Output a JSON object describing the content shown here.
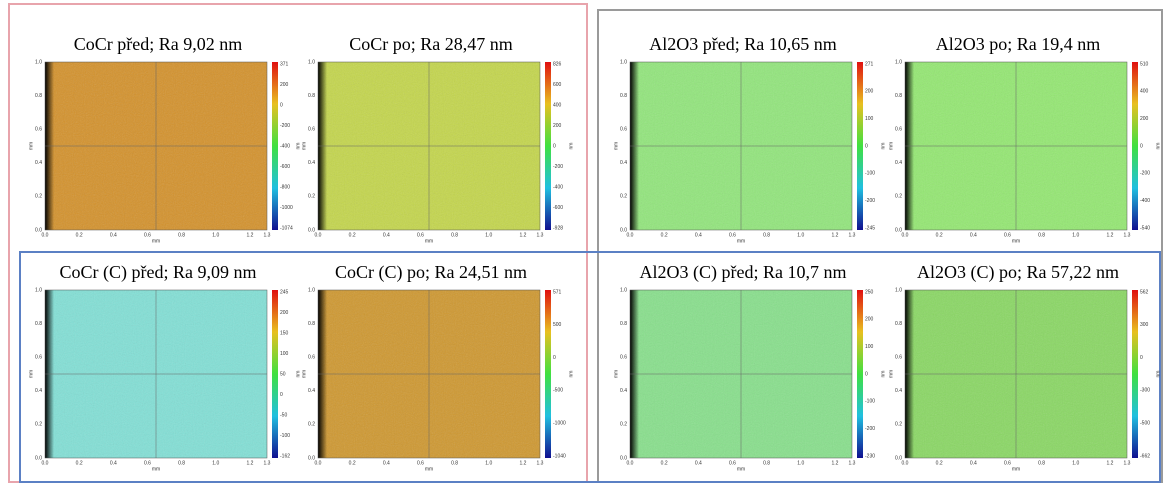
{
  "x_ticks": [
    "0.0",
    "0.2",
    "0.4",
    "0.6",
    "0.8",
    "1.0",
    "1.2",
    "1.3"
  ],
  "y_ticks": [
    "0.0",
    "0.2",
    "0.4",
    "0.6",
    "0.8",
    "1.0"
  ],
  "axis_unit": "mm",
  "colorbar_unit": "nm",
  "panels": [
    {
      "title": "CoCr před; Ra 9,02 nm",
      "color": "#d4922c",
      "colorbar_ticks": [
        "371",
        "200",
        "0",
        "-200",
        "-400",
        "-600",
        "-800",
        "-1000",
        "-1074"
      ]
    },
    {
      "title": "CoCr po; Ra 28,47 nm",
      "color": "#c4d64c",
      "colorbar_ticks": [
        "826",
        "600",
        "400",
        "200",
        "0",
        "-200",
        "-400",
        "-600",
        "-928"
      ]
    },
    {
      "title": "Al2O3 před; Ra 10,65 nm",
      "color": "#92e67c",
      "colorbar_ticks": [
        "271",
        "200",
        "100",
        "0",
        "-100",
        "-200",
        "-245"
      ]
    },
    {
      "title": "Al2O3 po; Ra 19,4 nm",
      "color": "#94e872",
      "colorbar_ticks": [
        "510",
        "400",
        "200",
        "0",
        "-200",
        "-400",
        "-540"
      ]
    },
    {
      "title": "CoCr (C) před; Ra 9,09 nm",
      "color": "#82e0d6",
      "colorbar_ticks": [
        "245",
        "200",
        "150",
        "100",
        "50",
        "0",
        "-50",
        "-100",
        "-162"
      ]
    },
    {
      "title": "CoCr (C) po; Ra 24,51 nm",
      "color": "#cf9830",
      "colorbar_ticks": [
        "571",
        "500",
        "0",
        "-500",
        "-1000",
        "-1040"
      ]
    },
    {
      "title": "Al2O3 (C) před; Ra 10,7 nm",
      "color": "#88e08c",
      "colorbar_ticks": [
        "250",
        "200",
        "100",
        "0",
        "-100",
        "-200",
        "-230"
      ]
    },
    {
      "title": "Al2O3 (C) po; Ra 57,22 nm",
      "color": "#8ad864",
      "colorbar_ticks": [
        "562",
        "300",
        "0",
        "-300",
        "-500",
        "-662"
      ]
    }
  ]
}
